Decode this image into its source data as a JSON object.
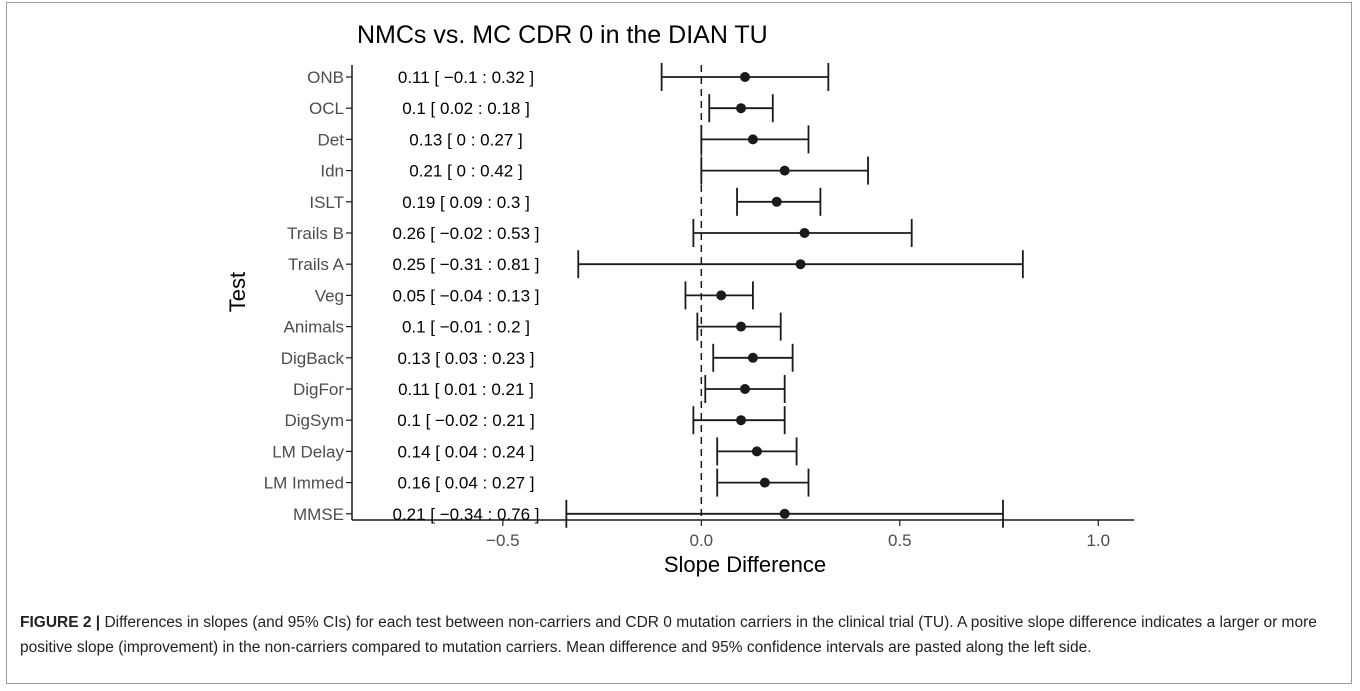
{
  "figure": {
    "caption_label": "FIGURE 2 |",
    "caption_text": " Differences in slopes (and 95% CIs) for each test between non-carriers and CDR 0 mutation carriers in the clinical trial (TU). A positive slope difference indicates a larger or more positive slope (improvement) in the non-carriers compared to mutation carriers. Mean difference and 95% confidence intervals are pasted along the left side."
  },
  "chart_data": {
    "type": "forest",
    "title": "NMCs vs. MC CDR 0 in the DIAN TU",
    "xlabel": "Slope Difference",
    "ylabel": "Test",
    "xlim": [
      -0.88,
      1.09
    ],
    "xticks": [
      -0.5,
      0.0,
      0.5,
      1.0
    ],
    "xtick_labels": [
      "−0.5",
      "0.0",
      "0.5",
      "1.0"
    ],
    "reference_line": 0,
    "grid": false,
    "rows": [
      {
        "test": "ONB",
        "estimate": 0.11,
        "lower": -0.1,
        "upper": 0.32,
        "label": "0.11  [ −0.1  :  0.32 ]"
      },
      {
        "test": "OCL",
        "estimate": 0.1,
        "lower": 0.02,
        "upper": 0.18,
        "label": "0.1  [ 0.02  :  0.18 ]"
      },
      {
        "test": "Det",
        "estimate": 0.13,
        "lower": 0,
        "upper": 0.27,
        "label": "0.13  [ 0  :  0.27 ]"
      },
      {
        "test": "Idn",
        "estimate": 0.21,
        "lower": 0,
        "upper": 0.42,
        "label": "0.21  [ 0  :  0.42 ]"
      },
      {
        "test": "ISLT",
        "estimate": 0.19,
        "lower": 0.09,
        "upper": 0.3,
        "label": "0.19  [ 0.09  :  0.3 ]"
      },
      {
        "test": "Trails B",
        "estimate": 0.26,
        "lower": -0.02,
        "upper": 0.53,
        "label": "0.26  [ −0.02  :  0.53 ]"
      },
      {
        "test": "Trails A",
        "estimate": 0.25,
        "lower": -0.31,
        "upper": 0.81,
        "label": "0.25  [ −0.31  :  0.81 ]"
      },
      {
        "test": "Veg",
        "estimate": 0.05,
        "lower": -0.04,
        "upper": 0.13,
        "label": "0.05  [ −0.04  :  0.13 ]"
      },
      {
        "test": "Animals",
        "estimate": 0.1,
        "lower": -0.01,
        "upper": 0.2,
        "label": "0.1  [ −0.01  :  0.2 ]"
      },
      {
        "test": "DigBack",
        "estimate": 0.13,
        "lower": 0.03,
        "upper": 0.23,
        "label": "0.13  [ 0.03  :  0.23 ]"
      },
      {
        "test": "DigFor",
        "estimate": 0.11,
        "lower": 0.01,
        "upper": 0.21,
        "label": "0.11  [ 0.01  :  0.21 ]"
      },
      {
        "test": "DigSym",
        "estimate": 0.1,
        "lower": -0.02,
        "upper": 0.21,
        "label": "0.1  [ −0.02  :  0.21 ]"
      },
      {
        "test": "LM Delay",
        "estimate": 0.14,
        "lower": 0.04,
        "upper": 0.24,
        "label": "0.14  [ 0.04  :  0.24 ]"
      },
      {
        "test": "LM Immed",
        "estimate": 0.16,
        "lower": 0.04,
        "upper": 0.27,
        "label": "0.16  [ 0.04  :  0.27 ]"
      },
      {
        "test": "MMSE",
        "estimate": 0.21,
        "lower": -0.34,
        "upper": 0.76,
        "label": "0.21  [ −0.34  :  0.76 ]"
      }
    ],
    "colors": {
      "ink": "#1a1a1a",
      "text": "#4d4d4d",
      "title": "#000000"
    }
  }
}
